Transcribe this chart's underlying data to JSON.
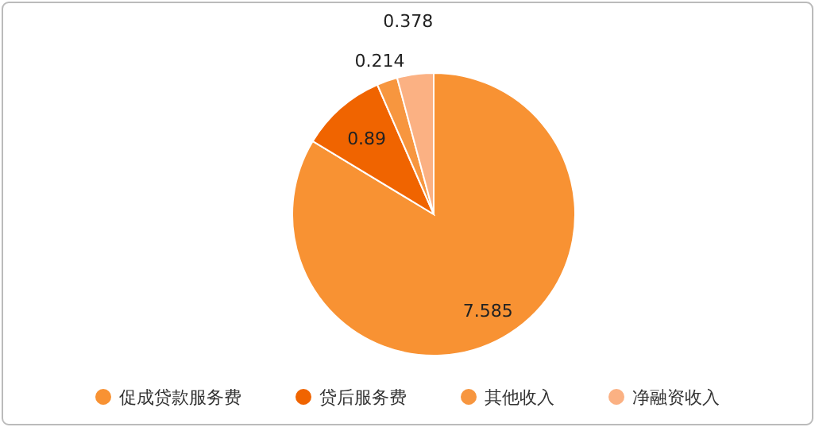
{
  "chart_data": {
    "type": "pie",
    "categories": [
      "促成贷款服务费",
      "贷后服务费",
      "其他收入",
      "净融资收入"
    ],
    "values": [
      7.585,
      0.89,
      0.214,
      0.378
    ],
    "colors": [
      "#f89233",
      "#f06400",
      "#f7963f",
      "#fbb183"
    ],
    "data_labels": true,
    "legend": "bottom"
  }
}
